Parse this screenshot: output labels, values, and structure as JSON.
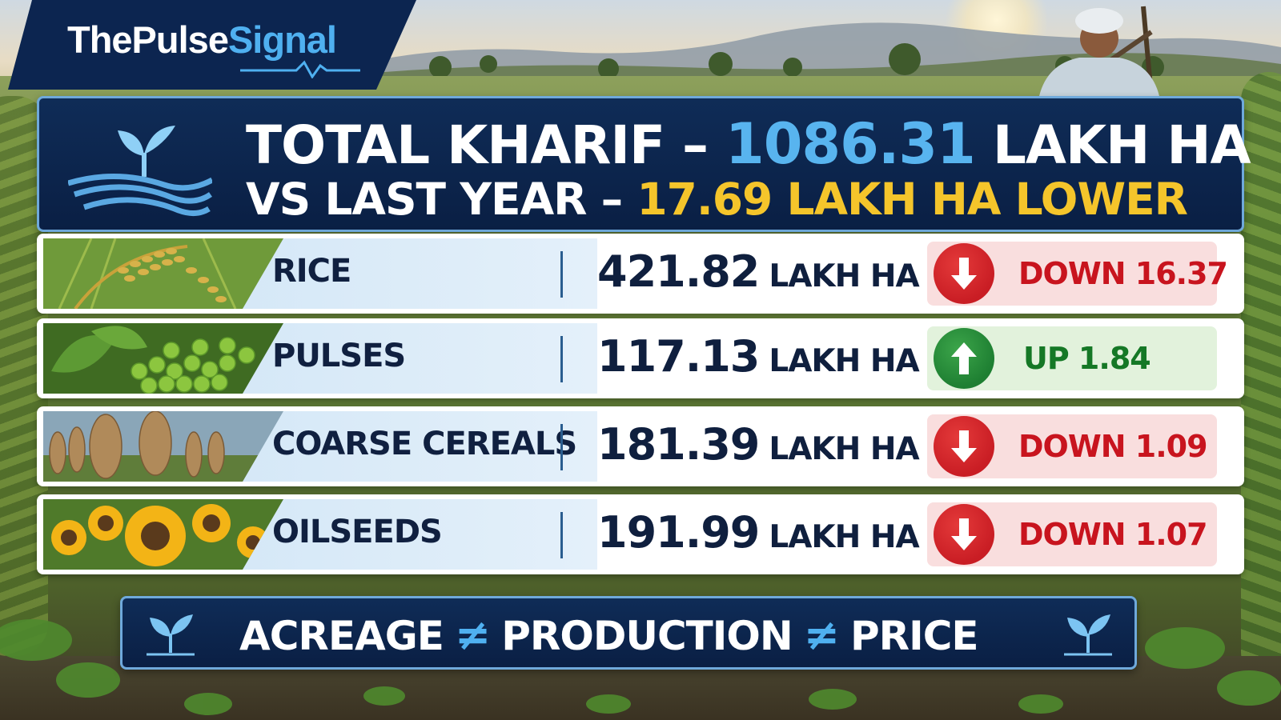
{
  "brand": {
    "name_part1": "ThePulse",
    "name_part2": "Signal"
  },
  "header": {
    "line1_prefix": "TOTAL KHARIF – ",
    "line1_value": "1086.31",
    "line1_suffix": " LAKH HA",
    "line2_prefix": "VS LAST YEAR – ",
    "line2_highlight": "17.69 LAKH HA LOWER"
  },
  "rows": [
    {
      "crop": "RICE",
      "value": "421.82",
      "unit": "LAKH HA",
      "direction": "down",
      "change": "DOWN 16.37"
    },
    {
      "crop": "PULSES",
      "value": "117.13",
      "unit": "LAKH HA",
      "direction": "up",
      "change": "UP 1.84"
    },
    {
      "crop": "COARSE CEREALS",
      "value": "181.39",
      "unit": "LAKH HA",
      "direction": "down",
      "change": "DOWN 1.09"
    },
    {
      "crop": "OILSEEDS",
      "value": "191.99",
      "unit": "LAKH HA",
      "direction": "down",
      "change": "DOWN 1.07"
    }
  ],
  "footer": {
    "word1": "ACREAGE",
    "symbol": "≠",
    "word2": "PRODUCTION",
    "word3": "PRICE"
  },
  "colors": {
    "navy": "#0a1f44",
    "accent_blue": "#58b4ef",
    "highlight_yellow": "#f5c52b",
    "down_red": "#c8141e",
    "up_green": "#157826"
  },
  "icons": {
    "header": "sprout-field-icon",
    "footer": "sprout-icon",
    "down": "arrow-down-icon",
    "up": "arrow-up-icon"
  }
}
